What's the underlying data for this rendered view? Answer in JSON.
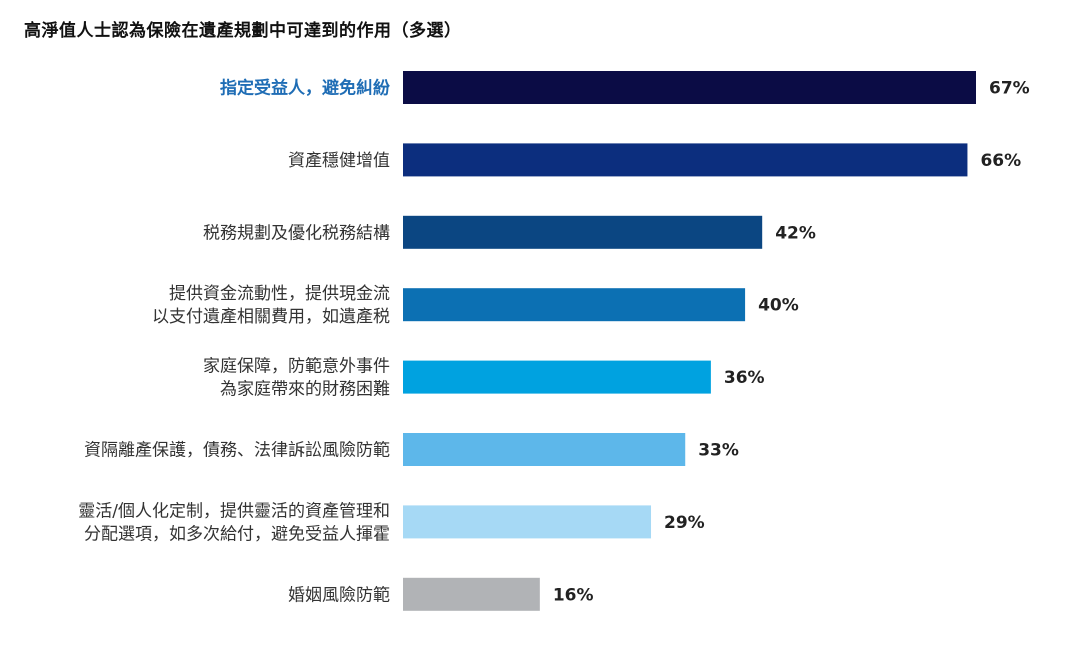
{
  "chart_data": {
    "type": "bar",
    "orientation": "horizontal",
    "title": "高淨值人士認為保險在遺產規劃中可達到的作用（多選）",
    "xlabel": "",
    "ylabel": "",
    "xlim": [
      0,
      67
    ],
    "categories": [
      [
        "指定受益人，避免糾紛"
      ],
      [
        "資產穩健增值"
      ],
      [
        "税務規劃及優化税務結構"
      ],
      [
        "提供資金流動性，提供現金流",
        "以支付遺產相關費用，如遺產税"
      ],
      [
        "家庭保障，防範意外事件",
        "為家庭帶來的財務困難"
      ],
      [
        "資隔離產保護，債務、法律訴訟風險防範"
      ],
      [
        "靈活/個人化定制，提供靈活的資產管理和",
        "分配選項，如多次給付，避免受益人揮霍"
      ],
      [
        "婚姻風險防範"
      ]
    ],
    "values": [
      67,
      66,
      42,
      40,
      36,
      33,
      29,
      16
    ],
    "value_labels": [
      "67%",
      "66%",
      "42%",
      "40%",
      "36%",
      "33%",
      "29%",
      "16%"
    ],
    "bar_colors": [
      "#0b0c45",
      "#0c2e7e",
      "#0b4682",
      "#0c70b3",
      "#00a2e0",
      "#5db7ea",
      "#a6d9f5",
      "#b1b3b6"
    ],
    "highlight_index": 0
  }
}
